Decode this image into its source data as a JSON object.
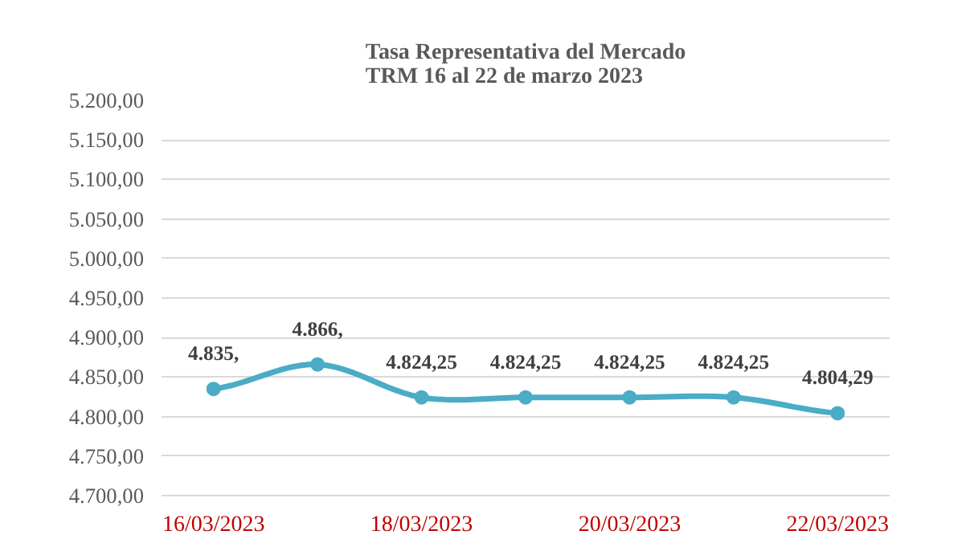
{
  "chart_data": {
    "type": "line",
    "title": "Tasa Representativa del Mercado\nTRM  16 al 22 de marzo 2023",
    "categories": [
      "16/03/2023",
      null,
      "18/03/2023",
      null,
      "20/03/2023",
      null,
      "22/03/2023"
    ],
    "series": [
      {
        "color": "#4bacc6",
        "values": [
          4835,
          4866,
          4824.25,
          4824.25,
          4824.25,
          4824.25,
          4804.29
        ],
        "value_labels": [
          "4.835,",
          "4.866,",
          "4.824,25",
          "4.824,25",
          "4.824,25",
          "4.824,25",
          "4.804,29"
        ]
      }
    ],
    "ylim": [
      4700,
      5200
    ],
    "yticks": [
      {
        "value": 4700,
        "label": "4.700,00"
      },
      {
        "value": 4750,
        "label": "4.750,00"
      },
      {
        "value": 4800,
        "label": "4.800,00"
      },
      {
        "value": 4850,
        "label": "4.850,00"
      },
      {
        "value": 4900,
        "label": "4.900,00"
      },
      {
        "value": 4950,
        "label": "4.950,00"
      },
      {
        "value": 5000,
        "label": "5.000,00"
      },
      {
        "value": 5050,
        "label": "5.050,00"
      },
      {
        "value": 5100,
        "label": "5.100,00"
      },
      {
        "value": 5150,
        "label": "5.150,00"
      },
      {
        "value": 5200,
        "label": "5.200,00"
      }
    ],
    "grid": "y",
    "marker": "circle",
    "line_style": "solid"
  }
}
